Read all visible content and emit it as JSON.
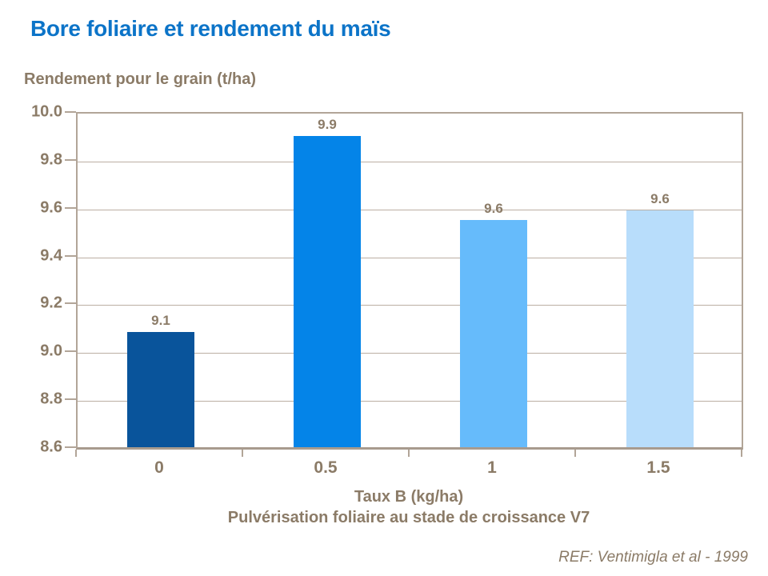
{
  "chart_data": {
    "type": "bar",
    "title": "Bore foliaire et rendement du maïs",
    "ylabel": "Rendement pour le grain (t/ha)",
    "xlabel": "Taux B (kg/ha)",
    "xlabel_line2": "Pulvérisation foliaire au stade de croissance V7",
    "reference": "REF: Ventimigla et al - 1999",
    "categories": [
      "0",
      "0.5",
      "1",
      "1.5"
    ],
    "values": [
      9.08,
      9.9,
      9.55,
      9.59
    ],
    "value_labels": [
      "9.1",
      "9.9",
      "9.6",
      "9.6"
    ],
    "bar_colors": [
      "#09549B",
      "#0484E8",
      "#66BBFB",
      "#B8DDFB"
    ],
    "ylim": [
      8.6,
      10.0
    ],
    "ytick_step": 0.2,
    "yticks": [
      "10.0",
      "9.8",
      "9.6",
      "9.4",
      "9.2",
      "9.0",
      "8.8",
      "8.6"
    ],
    "grid": true,
    "legend_position": "none",
    "colors": {
      "title_blue": "#0C74C8",
      "text_brown": "#8B7B67",
      "axis_tan": "#B2A598",
      "gridline_tan": "#BBAFA3",
      "background": "#FFFFFF"
    }
  }
}
